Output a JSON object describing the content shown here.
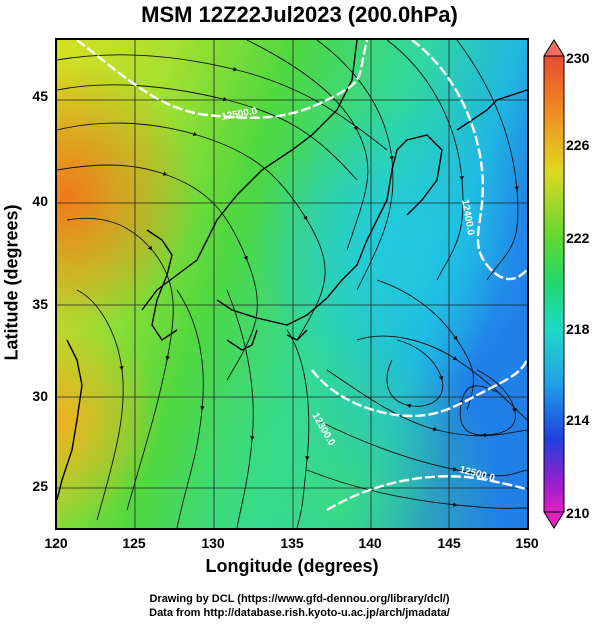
{
  "title": "MSM 12Z22Jul2023 (200.0hPa)",
  "xlabel": "Longitude (degrees)",
  "ylabel": "Latitude  (degrees)",
  "xticks": [
    "120",
    "125",
    "130",
    "135",
    "140",
    "145",
    "150"
  ],
  "yticks": [
    "25",
    "30",
    "35",
    "40",
    "45"
  ],
  "colorbar_ticks": [
    "230",
    "226",
    "222",
    "218",
    "214",
    "210"
  ],
  "contour_labels": [
    "12500.0",
    "12400.0",
    "12300.0",
    "12500.0"
  ],
  "footer_line1": "Drawing by DCL (https://www.gfd-dennou.org/library/dcl/)",
  "footer_line2": "Data from http://database.rish.kyoto-u.ac.jp/arch/jmadata/",
  "colors": {
    "warm": "#f07a1a",
    "yellow": "#d8e020",
    "green": "#30d040",
    "cyan": "#20c8d8",
    "blue": "#1060e0",
    "magenta": "#e020c0"
  }
}
